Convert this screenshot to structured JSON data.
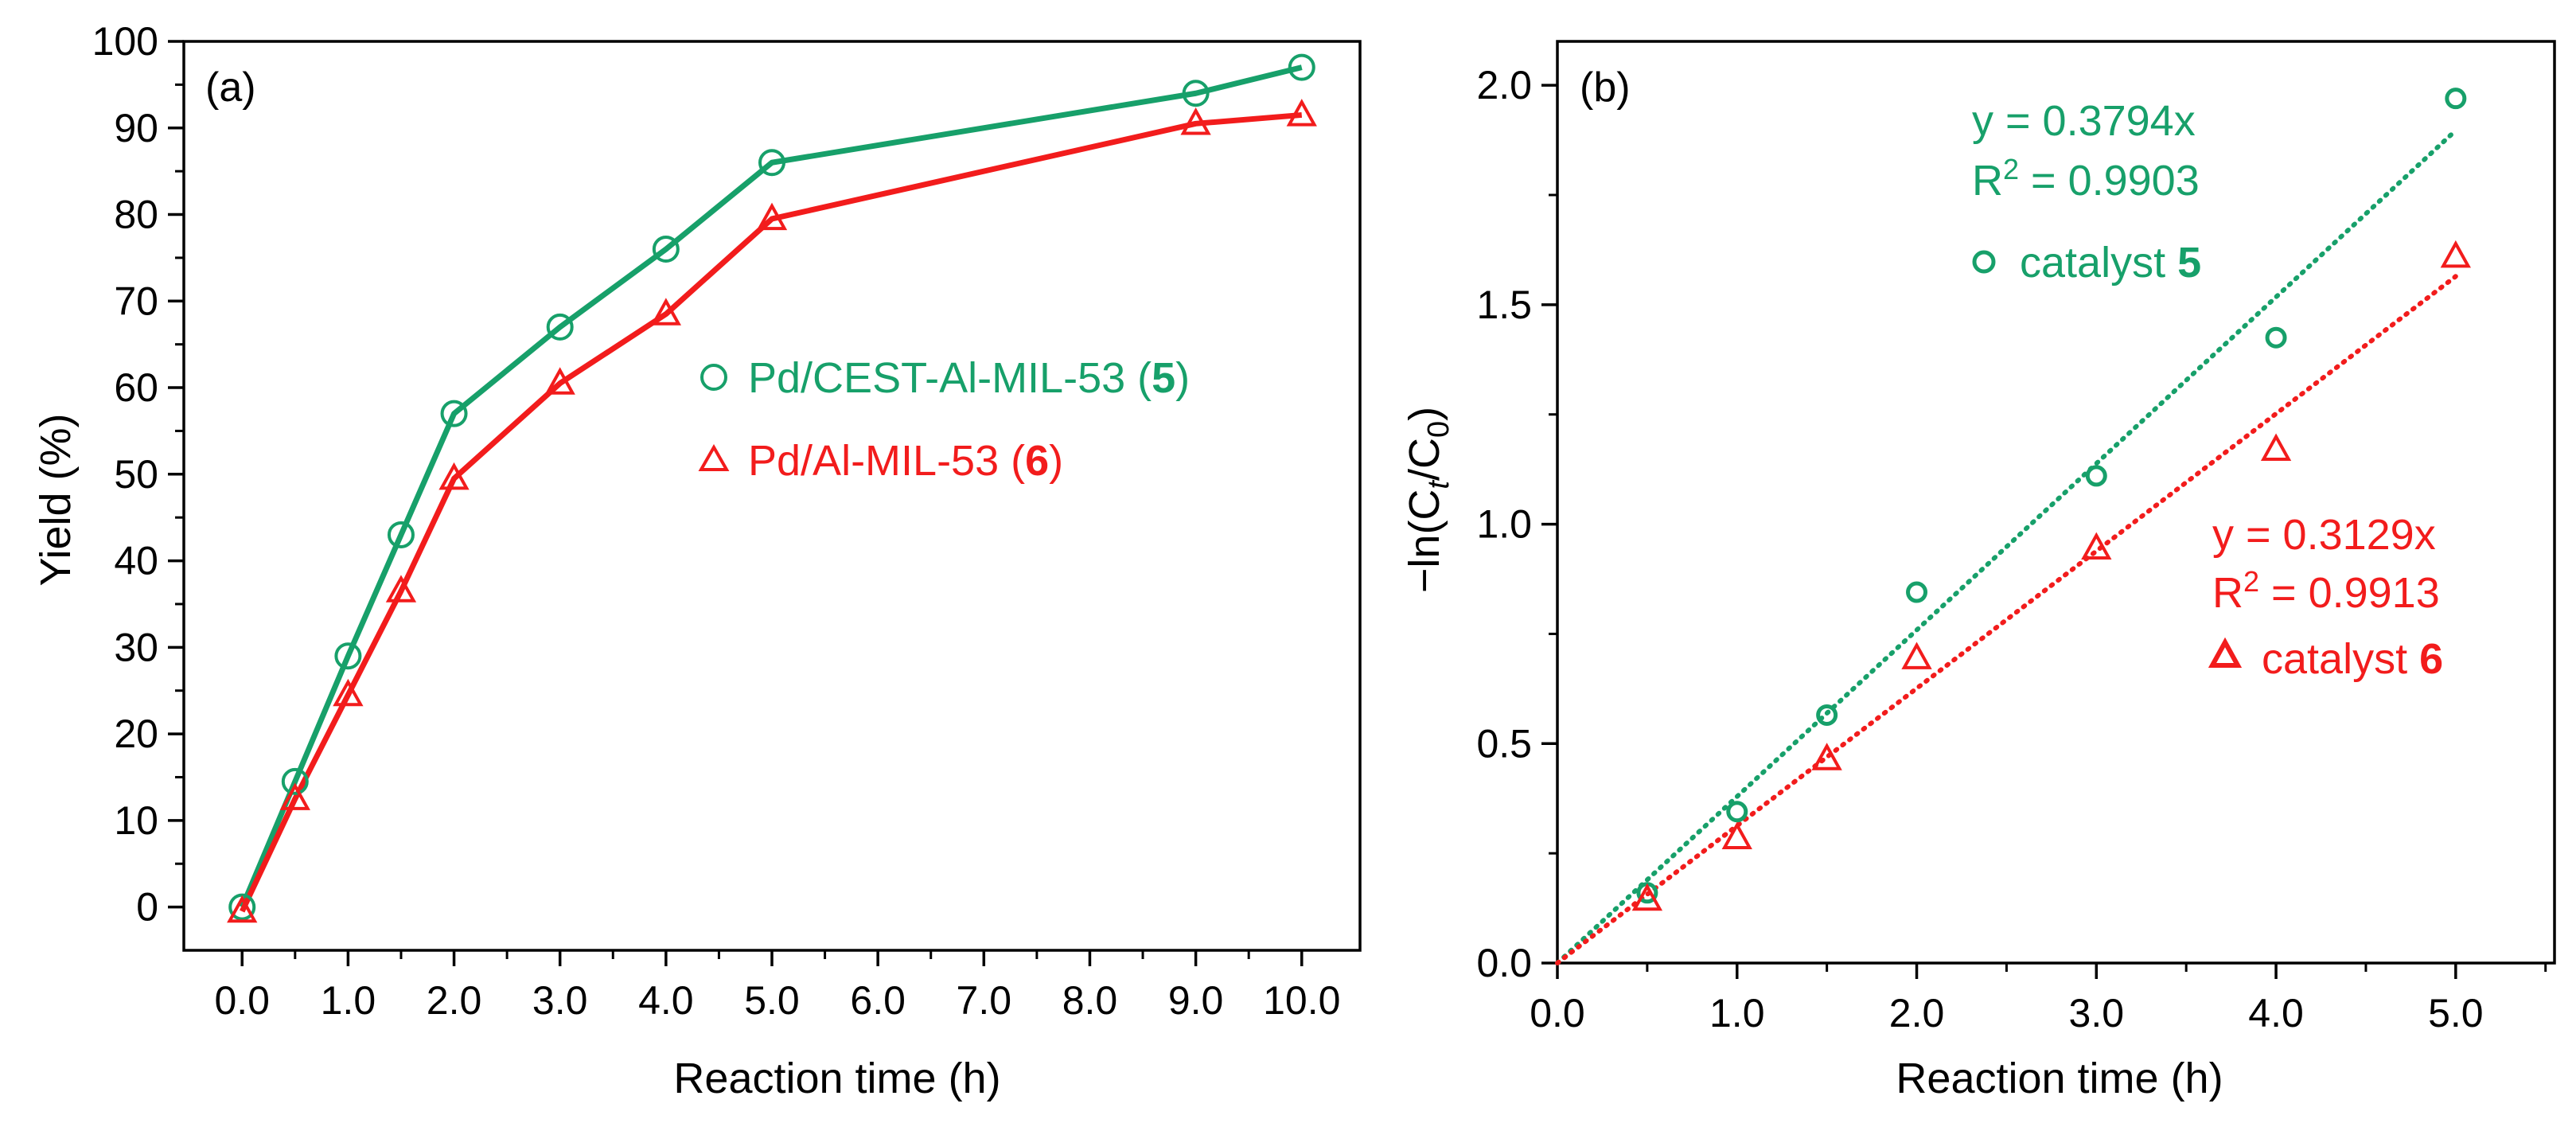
{
  "colors": {
    "green": "#17A06A",
    "red": "#F21C1C",
    "axis": "#000000"
  },
  "chart_data": [
    {
      "type": "line",
      "panel_label": "(a)",
      "xlabel": "Reaction time (h)",
      "ylabel": "Yield (%)",
      "xlim": [
        -0.55,
        10.55
      ],
      "ylim": [
        -5,
        100
      ],
      "xticks": [
        0,
        1,
        2,
        3,
        4,
        5,
        6,
        7,
        8,
        9,
        10
      ],
      "xtick_labels": [
        "0.0",
        "1.0",
        "2.0",
        "3.0",
        "4.0",
        "5.0",
        "6.0",
        "7.0",
        "8.0",
        "9.0",
        "10.0"
      ],
      "yticks": [
        0,
        10,
        20,
        30,
        40,
        50,
        60,
        70,
        80,
        90,
        100
      ],
      "ytick_labels": [
        "0",
        "10",
        "20",
        "30",
        "40",
        "50",
        "60",
        "70",
        "80",
        "90",
        "100"
      ],
      "legend_position": "center-right",
      "series": [
        {
          "name_main": "Pd/CEST-Al-MIL-53 (",
          "name_bold": "5",
          "name_end": ")",
          "marker": "circle",
          "color": "#17A06A",
          "x": [
            0,
            0.5,
            1,
            1.5,
            2,
            3,
            4,
            5,
            9,
            10
          ],
          "y": [
            0,
            14.5,
            29,
            43,
            57,
            67,
            76,
            86,
            94,
            97
          ]
        },
        {
          "name_main": "Pd/Al-MIL-53 (",
          "name_bold": "6",
          "name_end": ")",
          "marker": "triangle",
          "color": "#F21C1C",
          "x": [
            0,
            0.5,
            1,
            1.5,
            2,
            3,
            4,
            5,
            9,
            10
          ],
          "y": [
            -0.5,
            12.5,
            24.5,
            36.5,
            49.5,
            60.5,
            68.5,
            79.5,
            90.5,
            91.5
          ]
        }
      ]
    },
    {
      "type": "scatter",
      "panel_label": "(b)",
      "xlabel": "Reaction time (h)",
      "ylabel_prefix": "−ln(C",
      "ylabel_sub1": "t",
      "ylabel_mid": "/C",
      "ylabel_sub2": "0",
      "ylabel_end": ")",
      "xlim": [
        0,
        5.55
      ],
      "ylim": [
        0,
        2.1
      ],
      "xticks": [
        0,
        1,
        2,
        3,
        4,
        5
      ],
      "xtick_labels": [
        "0.0",
        "1.0",
        "2.0",
        "3.0",
        "4.0",
        "5.0"
      ],
      "yticks": [
        0,
        0.5,
        1.0,
        1.5,
        2.0
      ],
      "ytick_labels": [
        "0.0",
        "0.5",
        "1.0",
        "1.5",
        "2.0"
      ],
      "series": [
        {
          "name": "catalyst ",
          "name_bold": "5",
          "marker": "circle",
          "color": "#17A06A",
          "x": [
            0.5,
            1,
            1.5,
            2,
            3,
            4,
            5
          ],
          "y": [
            0.16,
            0.345,
            0.565,
            0.845,
            1.11,
            1.425,
            1.97
          ],
          "fit_slope": 0.3794,
          "fit_equation": "y = 0.3794x",
          "r2_prefix": "R",
          "r2_sup": "2",
          "r2_value": " = 0.9903"
        },
        {
          "name": "catalyst ",
          "name_bold": "6",
          "marker": "triangle",
          "color": "#F21C1C",
          "x": [
            0.5,
            1,
            1.5,
            2,
            3,
            4,
            5
          ],
          "y": [
            0.145,
            0.285,
            0.465,
            0.695,
            0.945,
            1.17,
            1.61
          ],
          "fit_slope": 0.3129,
          "fit_equation": "y = 0.3129x",
          "r2_prefix": "R",
          "r2_sup": "2",
          "r2_value": " = 0.9913"
        }
      ]
    }
  ]
}
